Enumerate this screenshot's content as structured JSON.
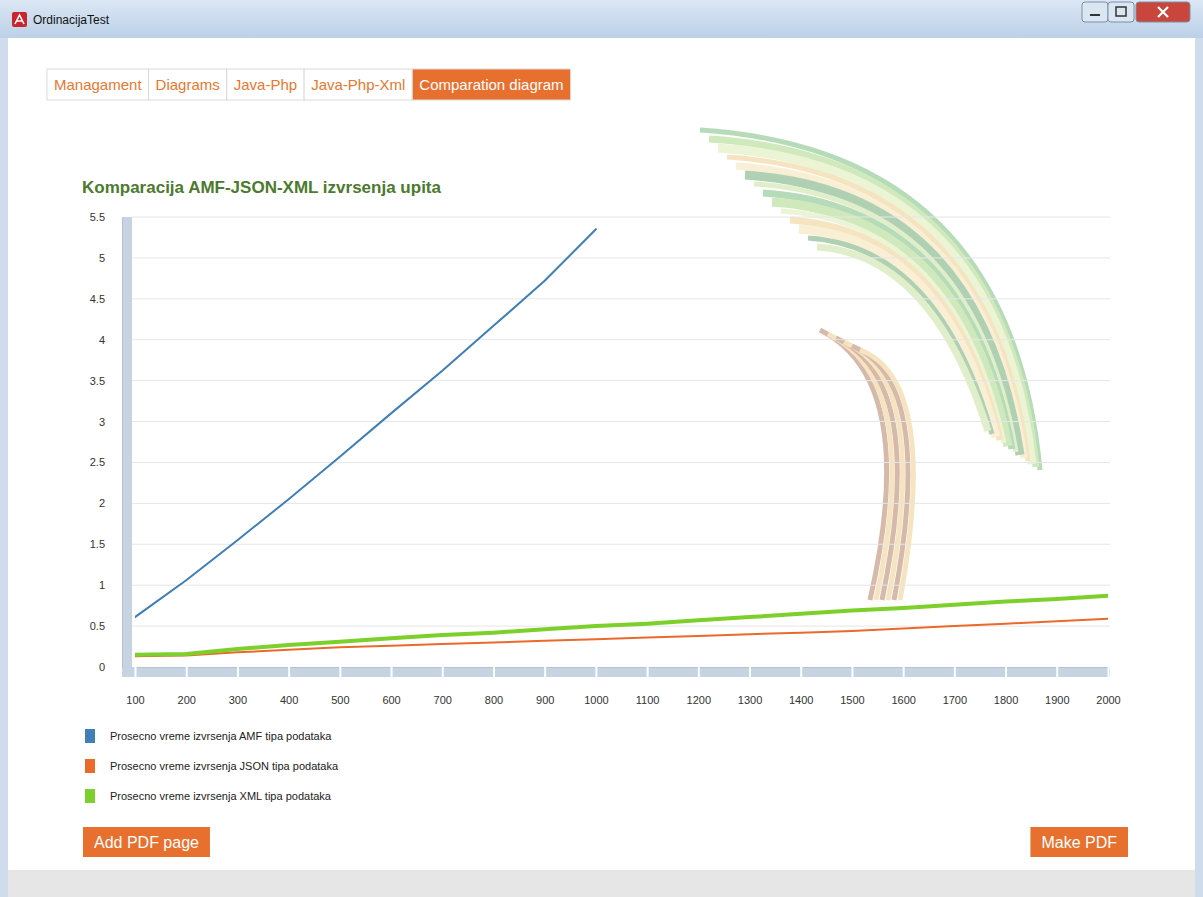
{
  "window": {
    "title": "OrdinacijaTest"
  },
  "tabs": [
    {
      "label": "Managament",
      "selected": false
    },
    {
      "label": "Diagrams",
      "selected": false
    },
    {
      "label": "Java-Php",
      "selected": false
    },
    {
      "label": "Java-Php-Xml",
      "selected": false
    },
    {
      "label": "Comparation diagram",
      "selected": true
    }
  ],
  "buttons": [
    "Add PDF page",
    "Make PDF"
  ],
  "chart_data": {
    "type": "line",
    "title": "Komparacija AMF-JSON-XML izvrsenja upita",
    "x": [
      100,
      200,
      300,
      400,
      500,
      600,
      700,
      800,
      900,
      1000,
      1100,
      1200,
      1300,
      1400,
      1500,
      1600,
      1700,
      1800,
      1900,
      2000
    ],
    "xlim": [
      100,
      2000
    ],
    "xticks": [
      100,
      200,
      300,
      400,
      500,
      600,
      700,
      800,
      900,
      1000,
      1100,
      1200,
      1300,
      1400,
      1500,
      1600,
      1700,
      1800,
      1900,
      2000
    ],
    "ylim": [
      0,
      5.5
    ],
    "yticks": [
      0,
      0.5,
      1,
      1.5,
      2,
      2.5,
      3,
      3.5,
      4,
      4.5,
      5,
      5.5
    ],
    "grid": true,
    "legend": "bottom-left",
    "series": [
      {
        "name": "Prosecno vreme izvrsenja AMF tipa podataka",
        "color": "#3f7fb5",
        "values": [
          0.61,
          1.06,
          1.55,
          2.05,
          2.57,
          3.1,
          3.62,
          4.17,
          4.72,
          5.35,
          null,
          null,
          null,
          null,
          null,
          null,
          null,
          null,
          null,
          null
        ]
      },
      {
        "name": "Prosecno vreme izvrsenja JSON tipa podataka",
        "color": "#ea6a2c",
        "values": [
          0.13,
          0.14,
          0.18,
          0.21,
          0.24,
          0.26,
          0.28,
          0.3,
          0.32,
          0.34,
          0.36,
          0.38,
          0.4,
          0.42,
          0.44,
          0.47,
          0.5,
          0.53,
          0.56,
          0.59
        ]
      },
      {
        "name": "Prosecno vreme izvrsenja XML tipa podataka",
        "color": "#7dcf2c",
        "values": [
          0.15,
          0.16,
          0.22,
          0.27,
          0.31,
          0.35,
          0.39,
          0.42,
          0.46,
          0.5,
          0.53,
          0.57,
          0.61,
          0.65,
          0.69,
          0.72,
          0.76,
          0.8,
          0.83,
          0.87
        ]
      }
    ]
  }
}
